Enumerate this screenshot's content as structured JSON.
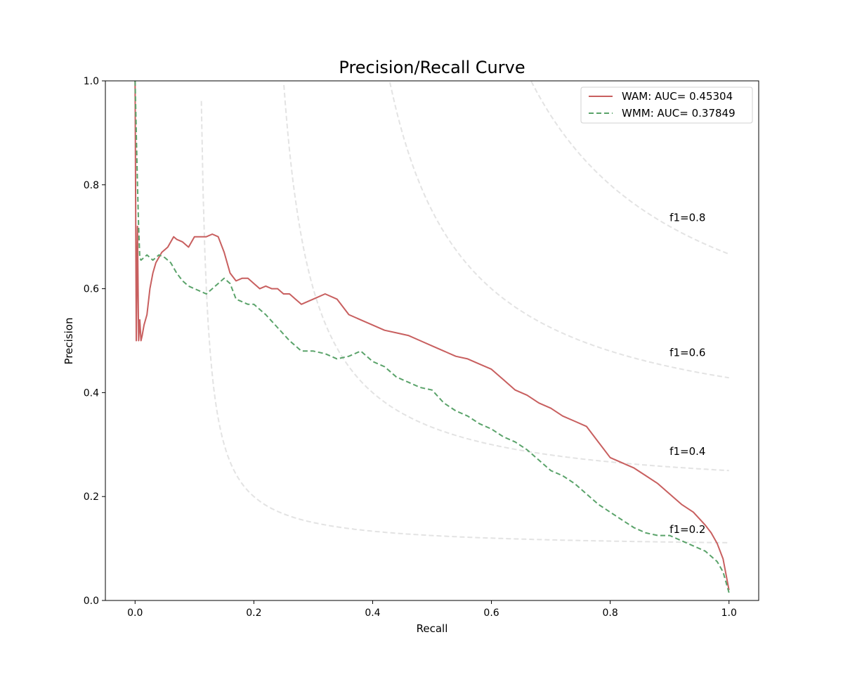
{
  "chart_data": {
    "type": "line",
    "title": "Precision/Recall Curve",
    "xlabel": "Recall",
    "ylabel": "Precision",
    "xlim": [
      -0.05,
      1.05
    ],
    "ylim": [
      0.0,
      1.0
    ],
    "x_ticks": [
      "0.0",
      "0.2",
      "0.4",
      "0.6",
      "0.8",
      "1.0"
    ],
    "y_ticks": [
      "0.0",
      "0.2",
      "0.4",
      "0.6",
      "0.8",
      "1.0"
    ],
    "grid": false,
    "legend_position": "top-right",
    "iso_f1": {
      "color": "#e3e3e3",
      "levels": [
        0.2,
        0.4,
        0.6,
        0.8
      ],
      "labels": [
        "f1=0.2",
        "f1=0.4",
        "f1=0.6",
        "f1=0.8"
      ],
      "label_positions": [
        [
          0.9,
          0.13
        ],
        [
          0.9,
          0.28
        ],
        [
          0.9,
          0.47
        ],
        [
          0.9,
          0.73
        ]
      ]
    },
    "series": [
      {
        "name": "WAM: AUC= 0.45304",
        "color": "#c85f5f",
        "style": "solid",
        "x": [
          0.0,
          0.002,
          0.004,
          0.006,
          0.008,
          0.01,
          0.012,
          0.015,
          0.02,
          0.025,
          0.03,
          0.035,
          0.04,
          0.045,
          0.05,
          0.055,
          0.06,
          0.065,
          0.07,
          0.08,
          0.09,
          0.1,
          0.11,
          0.12,
          0.13,
          0.14,
          0.15,
          0.16,
          0.17,
          0.18,
          0.19,
          0.2,
          0.21,
          0.22,
          0.23,
          0.24,
          0.25,
          0.26,
          0.27,
          0.28,
          0.29,
          0.3,
          0.32,
          0.34,
          0.36,
          0.38,
          0.4,
          0.42,
          0.44,
          0.46,
          0.48,
          0.5,
          0.52,
          0.54,
          0.56,
          0.58,
          0.6,
          0.62,
          0.64,
          0.66,
          0.68,
          0.7,
          0.72,
          0.74,
          0.76,
          0.78,
          0.8,
          0.82,
          0.84,
          0.86,
          0.88,
          0.9,
          0.92,
          0.94,
          0.96,
          0.97,
          0.98,
          0.99,
          1.0
        ],
        "y": [
          1.0,
          0.5,
          0.72,
          0.5,
          0.54,
          0.5,
          0.51,
          0.53,
          0.55,
          0.6,
          0.63,
          0.65,
          0.66,
          0.67,
          0.675,
          0.68,
          0.69,
          0.7,
          0.695,
          0.69,
          0.68,
          0.7,
          0.7,
          0.7,
          0.705,
          0.7,
          0.67,
          0.63,
          0.615,
          0.62,
          0.62,
          0.61,
          0.6,
          0.605,
          0.6,
          0.6,
          0.59,
          0.59,
          0.58,
          0.57,
          0.575,
          0.58,
          0.59,
          0.58,
          0.55,
          0.54,
          0.53,
          0.52,
          0.515,
          0.51,
          0.5,
          0.49,
          0.48,
          0.47,
          0.465,
          0.455,
          0.445,
          0.425,
          0.405,
          0.395,
          0.38,
          0.37,
          0.355,
          0.345,
          0.335,
          0.305,
          0.275,
          0.265,
          0.255,
          0.24,
          0.225,
          0.205,
          0.185,
          0.17,
          0.145,
          0.13,
          0.11,
          0.08,
          0.02
        ]
      },
      {
        "name": "WMM: AUC= 0.37849",
        "color": "#5aa36a",
        "style": "dashed",
        "x": [
          0.0,
          0.002,
          0.004,
          0.006,
          0.008,
          0.01,
          0.015,
          0.02,
          0.03,
          0.04,
          0.05,
          0.06,
          0.07,
          0.08,
          0.09,
          0.1,
          0.11,
          0.12,
          0.13,
          0.14,
          0.15,
          0.16,
          0.17,
          0.18,
          0.19,
          0.2,
          0.22,
          0.24,
          0.26,
          0.28,
          0.3,
          0.32,
          0.34,
          0.36,
          0.38,
          0.4,
          0.42,
          0.44,
          0.46,
          0.48,
          0.5,
          0.52,
          0.54,
          0.56,
          0.58,
          0.6,
          0.62,
          0.64,
          0.66,
          0.68,
          0.7,
          0.72,
          0.74,
          0.76,
          0.78,
          0.8,
          0.82,
          0.84,
          0.86,
          0.88,
          0.9,
          0.92,
          0.94,
          0.96,
          0.98,
          0.99,
          1.0
        ],
        "y": [
          1.0,
          0.9,
          0.8,
          0.72,
          0.66,
          0.655,
          0.66,
          0.665,
          0.655,
          0.665,
          0.66,
          0.65,
          0.63,
          0.615,
          0.605,
          0.6,
          0.595,
          0.59,
          0.6,
          0.61,
          0.62,
          0.61,
          0.58,
          0.575,
          0.57,
          0.57,
          0.55,
          0.525,
          0.5,
          0.48,
          0.48,
          0.475,
          0.465,
          0.47,
          0.48,
          0.46,
          0.45,
          0.43,
          0.42,
          0.41,
          0.405,
          0.38,
          0.365,
          0.355,
          0.34,
          0.33,
          0.315,
          0.305,
          0.29,
          0.27,
          0.25,
          0.24,
          0.225,
          0.205,
          0.185,
          0.17,
          0.155,
          0.14,
          0.13,
          0.125,
          0.125,
          0.115,
          0.105,
          0.095,
          0.075,
          0.055,
          0.015
        ]
      }
    ]
  }
}
